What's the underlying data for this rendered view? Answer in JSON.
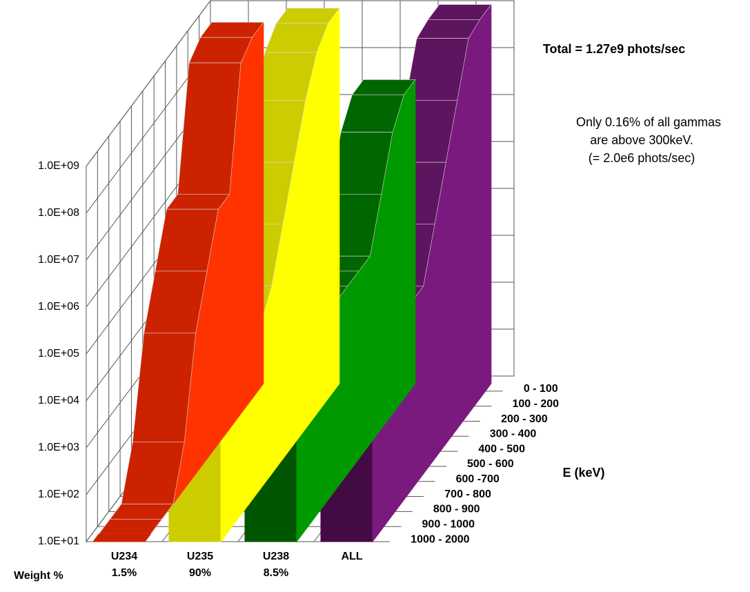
{
  "chart_data": {
    "type": "ribbon3d",
    "annotation": "Total = 1.27e9 phots/sec",
    "note": [
      "Only 0.16% of all gammas",
      "are above 300keV.",
      "(= 2.0e6 phots/sec)"
    ],
    "weight_label": "Weight %",
    "z_label": "E (keV)",
    "bins": [
      "0 - 100",
      "100 - 200",
      "200 - 300",
      "300 - 400",
      "400 - 500",
      "500 - 600",
      "600 -700",
      "700 - 800",
      "800 - 900",
      "900 - 1000",
      "1000 - 2000"
    ],
    "log": true,
    "grid": true,
    "ylim": [
      10,
      1000000000
    ],
    "yticks": [
      {
        "value": 10,
        "label": "1.0E+01"
      },
      {
        "value": 100,
        "label": "1.0E+02"
      },
      {
        "value": 1000,
        "label": "1.0E+03"
      },
      {
        "value": 10000,
        "label": "1.0E+04"
      },
      {
        "value": 100000,
        "label": "1.0E+05"
      },
      {
        "value": 1000000,
        "label": "1.0E+06"
      },
      {
        "value": 10000000,
        "label": "1.0E+07"
      },
      {
        "value": 100000000,
        "label": "1.0E+08"
      },
      {
        "value": 1000000000,
        "label": "1.0E+09"
      }
    ],
    "series": [
      {
        "name": "U234",
        "weight": "1.5%",
        "color": "#cc2200",
        "side": "#ff3300",
        "front": "#aa1a00",
        "values": [
          500000000,
          500000000,
          300000000,
          1000000,
          1000000,
          100000,
          10000,
          100,
          10,
          10,
          10
        ]
      },
      {
        "name": "U235",
        "weight": "90%",
        "color": "#cccc00",
        "side": "#ffff00",
        "front": "#cccc00",
        "values": [
          1000000000,
          1000000000,
          500000000,
          100000000,
          10000000,
          1000000,
          100000,
          30000,
          10000,
          10000,
          100000
        ]
      },
      {
        "name": "U238",
        "weight": "8.5%",
        "color": "#006600",
        "side": "#009900",
        "front": "#005500",
        "values": [
          30000000,
          30000000,
          10000000,
          1000000,
          100000,
          100000,
          100000,
          100000,
          100000,
          100000,
          100000
        ]
      },
      {
        "name": "ALL",
        "color": "#5e1560",
        "side": "#7b1a7e",
        "front": "#440a44",
        "values": [
          1200000000,
          1200000000,
          1000000000,
          100000000,
          10000000,
          1000000,
          100000,
          100000,
          100000,
          100000,
          100000
        ]
      }
    ]
  }
}
